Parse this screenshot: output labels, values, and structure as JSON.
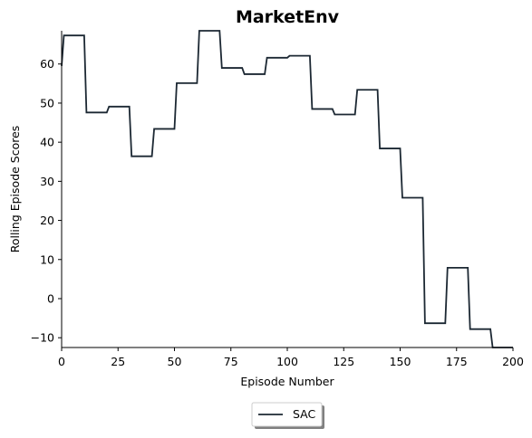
{
  "chart_data": {
    "type": "line",
    "title": "MarketEnv",
    "xlabel": "Episode Number",
    "ylabel": "Rolling Episode Scores",
    "xlim": [
      0,
      200
    ],
    "ylim": [
      -12.5,
      68.5
    ],
    "xticks": [
      0,
      25,
      50,
      75,
      100,
      125,
      150,
      175,
      200
    ],
    "yticks": [
      -10,
      0,
      10,
      20,
      30,
      40,
      50,
      60
    ],
    "xtick_labels": [
      "0",
      "25",
      "50",
      "75",
      "100",
      "125",
      "150",
      "175",
      "200"
    ],
    "ytick_labels": [
      "−10",
      "0",
      "10",
      "20",
      "30",
      "40",
      "50",
      "60"
    ],
    "grid": false,
    "legend": {
      "placement": "bottom-center",
      "entries": [
        "SAC"
      ]
    },
    "series": [
      {
        "name": "SAC",
        "color": "#1c2833",
        "x": [
          0,
          1,
          10,
          11,
          20,
          21,
          30,
          31,
          40,
          41,
          50,
          51,
          60,
          61,
          70,
          71,
          80,
          81,
          90,
          91,
          100,
          101,
          110,
          111,
          120,
          121,
          130,
          131,
          140,
          141,
          150,
          151,
          160,
          161,
          170,
          171,
          180,
          181,
          190,
          191,
          200
        ],
        "y": [
          59.5,
          67.3,
          67.3,
          47.6,
          47.6,
          49.1,
          49.1,
          36.4,
          36.4,
          43.4,
          43.4,
          55.1,
          55.1,
          68.5,
          68.5,
          59.0,
          59.0,
          57.4,
          57.4,
          61.6,
          61.6,
          62.1,
          62.1,
          48.5,
          48.5,
          47.1,
          47.1,
          53.4,
          53.4,
          38.4,
          38.4,
          25.8,
          25.8,
          -6.3,
          -6.3,
          7.9,
          7.9,
          -7.8,
          -7.8,
          -12.5,
          -12.5
        ]
      }
    ]
  }
}
